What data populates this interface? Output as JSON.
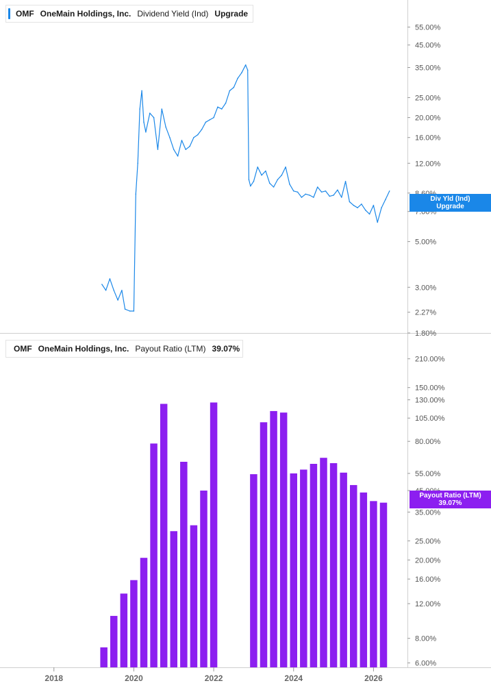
{
  "panels": [
    {
      "ticker": "OMF",
      "company": "OneMain Holdings, Inc.",
      "metric": "Dividend Yield (Ind)",
      "value": "Upgrade",
      "color": "#1a87e8",
      "flag_line1": "Div Yld (Ind)",
      "flag_line2": "Upgrade"
    },
    {
      "ticker": "OMF",
      "company": "OneMain Holdings, Inc.",
      "metric": "Payout Ratio (LTM)",
      "value": "39.07%",
      "color": "#8c1ff0",
      "flag_line1": "Payout Ratio (LTM)",
      "flag_line2": "39.07%"
    }
  ],
  "x_axis": {
    "ticks": [
      "2018",
      "2020",
      "2022",
      "2024",
      "2026"
    ],
    "range": [
      2016.65,
      2026.85
    ]
  },
  "chart_data": [
    {
      "type": "line",
      "title": "OMF OneMain Holdings, Inc. Dividend Yield (Ind)",
      "scale": "log",
      "ylim": [
        1.8,
        70
      ],
      "y_ticks": [
        "55.00%",
        "45.00%",
        "35.00%",
        "25.00%",
        "20.00%",
        "16.00%",
        "12.00%",
        "8.60%",
        "7.00%",
        "5.00%",
        "3.00%",
        "2.27%",
        "1.80%"
      ],
      "y_tick_values": [
        55,
        45,
        35,
        25,
        20,
        16,
        12,
        8.6,
        7,
        5,
        3,
        2.27,
        1.8
      ],
      "series": [
        {
          "name": "Dividend Yield (Ind)",
          "x": [
            2019.2,
            2019.3,
            2019.4,
            2019.5,
            2019.6,
            2019.7,
            2019.78,
            2019.9,
            2020.0,
            2020.05,
            2020.1,
            2020.15,
            2020.2,
            2020.25,
            2020.3,
            2020.4,
            2020.5,
            2020.6,
            2020.7,
            2020.8,
            2020.9,
            2021.0,
            2021.1,
            2021.2,
            2021.3,
            2021.4,
            2021.5,
            2021.6,
            2021.7,
            2021.8,
            2021.9,
            2022.0,
            2022.1,
            2022.2,
            2022.3,
            2022.4,
            2022.5,
            2022.6,
            2022.7,
            2022.8,
            2022.85,
            2022.88,
            2022.92,
            2023.0,
            2023.1,
            2023.2,
            2023.3,
            2023.4,
            2023.5,
            2023.6,
            2023.7,
            2023.8,
            2023.9,
            2024.0,
            2024.1,
            2024.2,
            2024.3,
            2024.4,
            2024.5,
            2024.6,
            2024.7,
            2024.8,
            2024.9,
            2025.0,
            2025.1,
            2025.2,
            2025.3,
            2025.4,
            2025.5,
            2025.6,
            2025.7,
            2025.8,
            2025.9,
            2026.0,
            2026.1,
            2026.2,
            2026.3,
            2026.4
          ],
          "y": [
            3.1,
            2.9,
            3.3,
            2.9,
            2.6,
            2.9,
            2.35,
            2.3,
            2.3,
            8.5,
            12,
            22,
            27,
            19,
            17,
            21,
            20,
            14,
            22,
            18,
            16,
            14,
            13,
            15.5,
            14,
            14.5,
            16,
            16.5,
            17.5,
            19,
            19.5,
            20,
            22.5,
            22,
            23.5,
            27,
            28,
            31,
            33,
            36,
            34,
            10,
            9.3,
            9.8,
            11.5,
            10.5,
            11,
            9.6,
            9.2,
            10,
            10.5,
            11.5,
            9.5,
            8.8,
            8.7,
            8.2,
            8.5,
            8.4,
            8.2,
            9.2,
            8.7,
            8.8,
            8.3,
            8.4,
            8.9,
            8.2,
            9.8,
            7.8,
            7.5,
            7.3,
            7.6,
            7.1,
            6.8,
            7.5,
            6.2,
            7.3,
            8.0,
            8.8
          ]
        }
      ]
    },
    {
      "type": "bar",
      "title": "OMF OneMain Holdings, Inc. Payout Ratio (LTM)",
      "scale": "log",
      "ylim": [
        5.7,
        260
      ],
      "y_ticks": [
        "210.00%",
        "150.00%",
        "130.00%",
        "105.00%",
        "80.00%",
        "55.00%",
        "45.00%",
        "35.00%",
        "25.00%",
        "20.00%",
        "16.00%",
        "12.00%",
        "8.00%",
        "6.00%"
      ],
      "y_tick_values": [
        210,
        150,
        130,
        105,
        80,
        55,
        45,
        35,
        25,
        20,
        16,
        12,
        8,
        6
      ],
      "series": [
        {
          "name": "Payout Ratio (LTM)",
          "x": [
            2019.25,
            2019.5,
            2019.75,
            2020.0,
            2020.25,
            2020.5,
            2020.75,
            2021.0,
            2021.25,
            2021.5,
            2021.75,
            2022.0,
            2023.0,
            2023.25,
            2023.5,
            2023.75,
            2024.0,
            2024.25,
            2024.5,
            2024.75,
            2025.0,
            2025.25,
            2025.5,
            2025.75,
            2026.0,
            2026.25
          ],
          "values": [
            7.2,
            10.4,
            13.5,
            15.8,
            20.5,
            78,
            124,
            28,
            63,
            30,
            45,
            126,
            54.5,
            100,
            114,
            112,
            55,
            57.5,
            61.5,
            66,
            62,
            55.5,
            48,
            44,
            39.8,
            39.07
          ]
        }
      ]
    }
  ]
}
